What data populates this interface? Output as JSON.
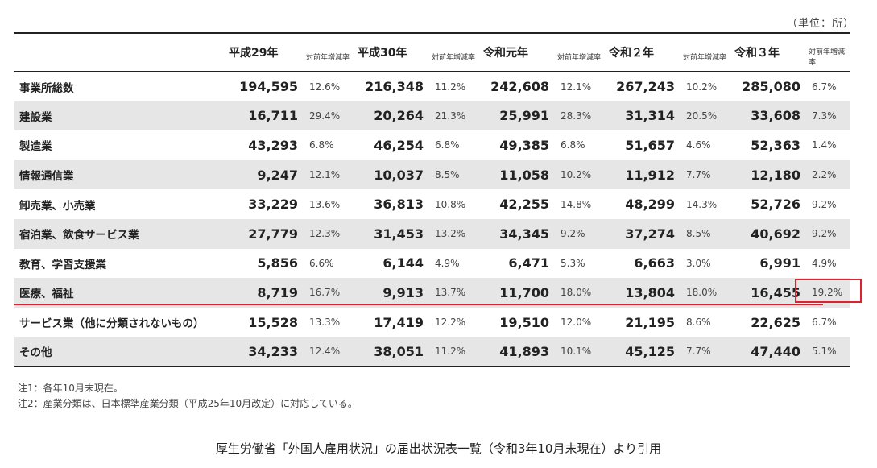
{
  "unit_note": "（単位：所）",
  "headers": [
    "平成29年",
    "平成30年",
    "令和元年",
    "令和２年",
    "令和３年"
  ],
  "rate_header": "対前年増減率",
  "rows": [
    {
      "label": "事業所総数",
      "cells": [
        "194,595",
        "12.6%",
        "216,348",
        "11.2%",
        "242,608",
        "12.1%",
        "267,243",
        "10.2%",
        "285,080",
        "6.7%"
      ]
    },
    {
      "label": "建設業",
      "cells": [
        "16,711",
        "29.4%",
        "20,264",
        "21.3%",
        "25,991",
        "28.3%",
        "31,314",
        "20.5%",
        "33,608",
        "7.3%"
      ]
    },
    {
      "label": "製造業",
      "cells": [
        "43,293",
        "6.8%",
        "46,254",
        "6.8%",
        "49,385",
        "6.8%",
        "51,657",
        "4.6%",
        "52,363",
        "1.4%"
      ]
    },
    {
      "label": "情報通信業",
      "cells": [
        "9,247",
        "12.1%",
        "10,037",
        "8.5%",
        "11,058",
        "10.2%",
        "11,912",
        "7.7%",
        "12,180",
        "2.2%"
      ]
    },
    {
      "label": "卸売業、小売業",
      "cells": [
        "33,229",
        "13.6%",
        "36,813",
        "10.8%",
        "42,255",
        "14.8%",
        "48,299",
        "14.3%",
        "52,726",
        "9.2%"
      ]
    },
    {
      "label": "宿泊業、飲食サービス業",
      "cells": [
        "27,779",
        "12.3%",
        "31,453",
        "13.2%",
        "34,345",
        "9.2%",
        "37,274",
        "8.5%",
        "40,692",
        "9.2%"
      ]
    },
    {
      "label": "教育、学習支援業",
      "cells": [
        "5,856",
        "6.6%",
        "6,144",
        "4.9%",
        "6,471",
        "5.3%",
        "6,663",
        "3.0%",
        "6,991",
        "4.9%"
      ]
    },
    {
      "label": "医療、福祉",
      "cells": [
        "8,719",
        "16.7%",
        "9,913",
        "13.7%",
        "11,700",
        "18.0%",
        "13,804",
        "18.0%",
        "16,455",
        "19.2%"
      ]
    },
    {
      "label": "サービス業（他に分類されないもの）",
      "cells": [
        "15,528",
        "13.3%",
        "17,419",
        "12.2%",
        "19,510",
        "12.0%",
        "21,195",
        "8.6%",
        "22,625",
        "6.7%"
      ]
    },
    {
      "label": "その他",
      "cells": [
        "34,233",
        "12.4%",
        "38,051",
        "11.2%",
        "41,893",
        "10.1%",
        "45,125",
        "7.7%",
        "47,440",
        "5.1%"
      ]
    }
  ],
  "notes": [
    "注1：各年10月末現在。",
    "注2：産業分類は、日本標準産業分類（平成25年10月改定）に対応している。"
  ],
  "caption": "厚生労働省「外国人雇用状況」の届出状況表一覧（令和3年10月末現在）より引用",
  "colors": {
    "highlight": "#d9232e",
    "shade": "#e6e6e6"
  }
}
